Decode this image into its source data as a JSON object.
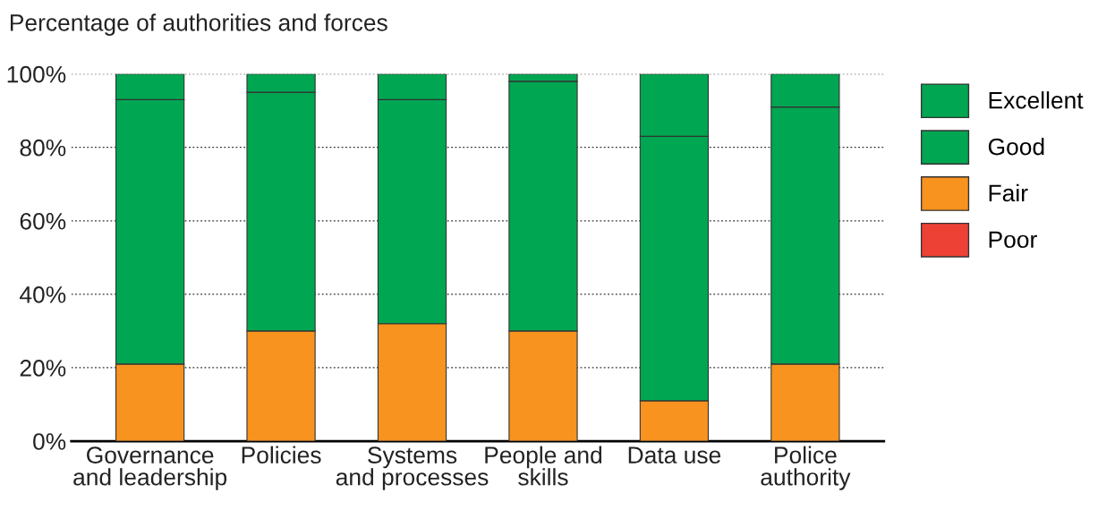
{
  "chart_data": {
    "type": "bar",
    "stacked": true,
    "ylabel": "Percentage of authorities and forces",
    "categories": [
      "Governance\nand leadership",
      "Policies",
      "Systems\nand processes",
      "People and\nskills",
      "Data use",
      "Police\nauthority"
    ],
    "series": [
      {
        "name": "Poor",
        "color": "#ee4136",
        "values": [
          0,
          0,
          0,
          0,
          0,
          0
        ]
      },
      {
        "name": "Fair",
        "color": "#f7931e",
        "values": [
          21,
          30,
          32,
          30,
          11,
          21
        ]
      },
      {
        "name": "Good",
        "color": "#00a651",
        "values": [
          72,
          65,
          61,
          68,
          72,
          70
        ]
      },
      {
        "name": "Excellent",
        "color": "#00a651",
        "values": [
          7,
          5,
          7,
          2,
          17,
          9
        ]
      }
    ],
    "ylim": [
      0,
      100
    ],
    "yticks": [
      {
        "value": 0,
        "label": "0%"
      },
      {
        "value": 20,
        "label": "20%"
      },
      {
        "value": 40,
        "label": "40%"
      },
      {
        "value": 60,
        "label": "60%"
      },
      {
        "value": 80,
        "label": "80%"
      },
      {
        "value": 100,
        "label": "100%"
      }
    ],
    "grid": "y",
    "legend": "right"
  }
}
